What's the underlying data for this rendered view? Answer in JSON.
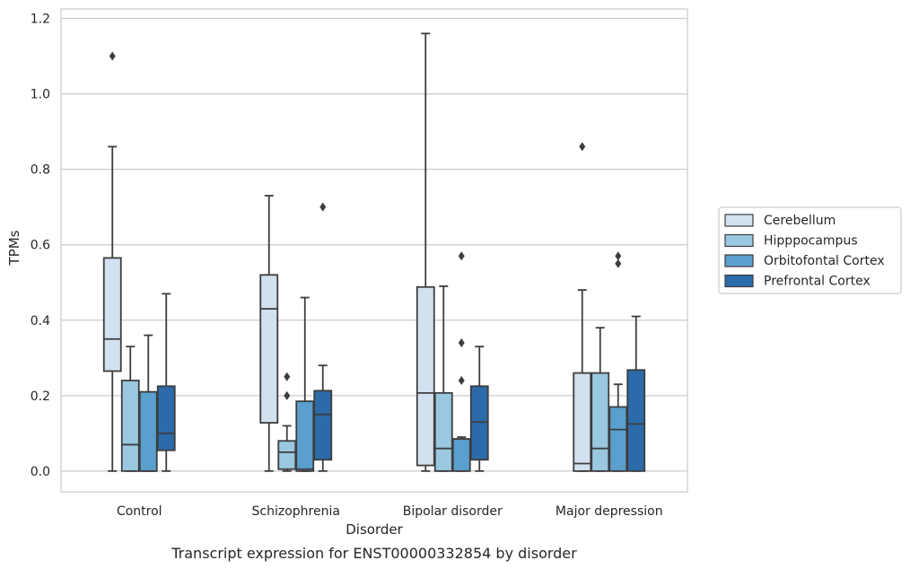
{
  "chart_data": {
    "type": "box",
    "title": "",
    "xlabel": "Disorder",
    "ylabel": "TPMs",
    "caption": "Transcript expression for ENST00000332854 by disorder",
    "ylim": [
      -0.055,
      1.225
    ],
    "yticks": [
      "0.0",
      "0.2",
      "0.4",
      "0.6",
      "0.8",
      "1.0",
      "1.2"
    ],
    "grid": true,
    "legend_position": "right",
    "categories": [
      "Control",
      "Schizophrenia",
      "Bipolar disorder",
      "Major depression"
    ],
    "series": [
      {
        "name": "Cerebellum",
        "color": "#d2e1f0",
        "boxes": [
          {
            "min": 0.0,
            "q1": 0.265,
            "median": 0.35,
            "q3": 0.565,
            "max": 0.86,
            "outliers": [
              1.1
            ]
          },
          {
            "min": 0.0,
            "q1": 0.128,
            "median": 0.43,
            "q3": 0.52,
            "max": 0.73,
            "outliers": []
          },
          {
            "min": 0.0,
            "q1": 0.015,
            "median": 0.207,
            "q3": 0.488,
            "max": 1.16,
            "outliers": []
          },
          {
            "min": 0.0,
            "q1": 0.0,
            "median": 0.02,
            "q3": 0.26,
            "max": 0.48,
            "outliers": [
              0.86
            ]
          }
        ]
      },
      {
        "name": "Hipppocampus",
        "color": "#9ac8e0",
        "boxes": [
          {
            "min": 0.0,
            "q1": 0.0,
            "median": 0.07,
            "q3": 0.24,
            "max": 0.33,
            "outliers": []
          },
          {
            "min": 0.0,
            "q1": 0.005,
            "median": 0.05,
            "q3": 0.08,
            "max": 0.12,
            "outliers": [
              0.2,
              0.25
            ]
          },
          {
            "min": 0.0,
            "q1": 0.0,
            "median": 0.06,
            "q3": 0.207,
            "max": 0.49,
            "outliers": []
          },
          {
            "min": 0.0,
            "q1": 0.0,
            "median": 0.06,
            "q3": 0.26,
            "max": 0.38,
            "outliers": []
          }
        ]
      },
      {
        "name": "Orbitofontal Cortex",
        "color": "#5a9fcd",
        "boxes": [
          {
            "min": 0.0,
            "q1": 0.0,
            "median": 0.0,
            "q3": 0.21,
            "max": 0.36,
            "outliers": []
          },
          {
            "min": 0.0,
            "q1": 0.0,
            "median": 0.005,
            "q3": 0.185,
            "max": 0.46,
            "outliers": []
          },
          {
            "min": 0.0,
            "q1": 0.0,
            "median": 0.085,
            "q3": 0.085,
            "max": 0.09,
            "outliers": [
              0.24,
              0.34,
              0.57
            ]
          },
          {
            "min": 0.0,
            "q1": 0.0,
            "median": 0.11,
            "q3": 0.17,
            "max": 0.23,
            "outliers": [
              0.55,
              0.57
            ]
          }
        ]
      },
      {
        "name": "Prefrontal Cortex",
        "color": "#2b6ba9",
        "boxes": [
          {
            "min": 0.0,
            "q1": 0.055,
            "median": 0.1,
            "q3": 0.225,
            "max": 0.47,
            "outliers": []
          },
          {
            "min": 0.0,
            "q1": 0.03,
            "median": 0.15,
            "q3": 0.213,
            "max": 0.28,
            "outliers": [
              0.7
            ]
          },
          {
            "min": 0.0,
            "q1": 0.03,
            "median": 0.13,
            "q3": 0.225,
            "max": 0.33,
            "outliers": []
          },
          {
            "min": 0.0,
            "q1": 0.0,
            "median": 0.125,
            "q3": 0.268,
            "max": 0.41,
            "outliers": []
          }
        ]
      }
    ]
  }
}
